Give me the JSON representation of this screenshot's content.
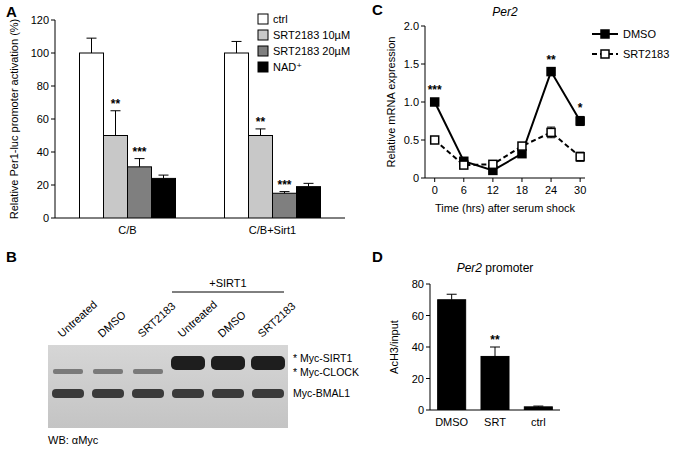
{
  "chart_data": [
    {
      "label": "A",
      "type": "bar",
      "y_label": "Relative Per1-luc promoter activation (%)",
      "categories": [
        "C/B",
        "C/B+Sirt1"
      ],
      "series": [
        {
          "name": "ctrl",
          "color": "#ffffff",
          "values": [
            100,
            100
          ],
          "errors": [
            9,
            7
          ],
          "significance": [
            null,
            null
          ]
        },
        {
          "name": "SRT2183 10µM",
          "color": "#c8c8c8",
          "values": [
            50,
            50
          ],
          "errors": [
            15,
            4
          ],
          "significance": [
            "**",
            "**"
          ]
        },
        {
          "name": "SRT2183 20µM",
          "color": "#7f7f7f",
          "values": [
            31,
            15
          ],
          "errors": [
            5,
            1
          ],
          "significance": [
            "***",
            "***"
          ]
        },
        {
          "name": "NAD⁺",
          "color": "#000000",
          "values": [
            24,
            19
          ],
          "errors": [
            2,
            2
          ],
          "significance": [
            null,
            null
          ]
        }
      ],
      "ylim": [
        0,
        120
      ],
      "yticks": [
        0,
        20,
        40,
        60,
        80,
        100,
        120
      ],
      "legend": "top-right"
    },
    {
      "label": "C",
      "type": "line",
      "title": "Per2",
      "x_label": "Time (hrs) after serum shock",
      "y_label": "Relative mRNA expression",
      "x": [
        0,
        6,
        12,
        18,
        24,
        30
      ],
      "series": [
        {
          "name": "DMSO",
          "color": "#000000",
          "marker": "filled-square",
          "line_style": "solid",
          "values": [
            1.0,
            0.22,
            0.1,
            0.32,
            1.4,
            0.75
          ],
          "errors": [
            0.02,
            0.03,
            0.02,
            0.03,
            0.04,
            0.06
          ],
          "significance": [
            "***",
            null,
            null,
            null,
            "**",
            "*"
          ]
        },
        {
          "name": "SRT2183",
          "color": "#000000",
          "marker": "open-square",
          "line_style": "dashed",
          "values": [
            0.5,
            0.17,
            0.18,
            0.42,
            0.6,
            0.28
          ],
          "errors": [
            0.02,
            0.02,
            0.02,
            0.04,
            0.07,
            0.06
          ],
          "significance": [
            null,
            null,
            null,
            null,
            null,
            null
          ]
        }
      ],
      "xlim": [
        -2,
        31
      ],
      "xticks": [
        0,
        6,
        12,
        18,
        24,
        30
      ],
      "ylim": [
        0,
        2
      ],
      "yticks": [
        0,
        0.5,
        {
          "value": 1,
          "label": "1.0"
        },
        1.5,
        {
          "value": 2,
          "label": "2.0"
        }
      ],
      "legend": "right"
    },
    {
      "label": "D",
      "type": "bar",
      "title": "Per2 promoter",
      "y_label": "AcH3/input",
      "categories": [
        "DMSO",
        "SRT",
        "ctrl"
      ],
      "values": [
        70,
        34,
        2
      ],
      "errors": [
        3.5,
        6,
        0.5
      ],
      "significance": [
        null,
        "**",
        null
      ],
      "color": "#000000",
      "ylim": [
        0,
        80
      ],
      "yticks": [
        0,
        20,
        40,
        60,
        80
      ]
    }
  ],
  "blot": {
    "label": "B",
    "treatment": "+SIRT1",
    "lanes": [
      {
        "label": "Untreated",
        "sirt1": false
      },
      {
        "label": "DMSO",
        "sirt1": false
      },
      {
        "label": "SRT2183",
        "sirt1": false
      },
      {
        "label": "Untreated",
        "sirt1": true
      },
      {
        "label": "DMSO",
        "sirt1": true
      },
      {
        "label": "SRT2183",
        "sirt1": true
      }
    ],
    "bands": [
      "* Myc-SIRT1",
      "* Myc-CLOCK",
      "Myc-BMAL1"
    ],
    "antibody": "WB: αMyc"
  }
}
